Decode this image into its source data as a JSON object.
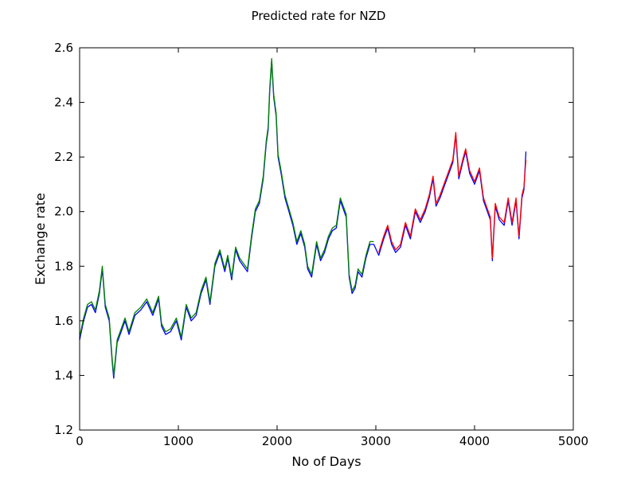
{
  "chart_data": {
    "type": "line",
    "title": "Predicted rate for NZD",
    "xlabel": "No of Days",
    "ylabel": "Exchange rate",
    "xlim": [
      0,
      5000
    ],
    "ylim": [
      1.2,
      2.6
    ],
    "xticks": [
      "0",
      "1000",
      "2000",
      "3000",
      "4000",
      "5000"
    ],
    "yticks": [
      "1.2",
      "1.4",
      "1.6",
      "1.8",
      "2.0",
      "2.2",
      "2.4",
      "2.6"
    ],
    "grid": false,
    "legend": "none",
    "series": [
      {
        "color": "#0000ff",
        "x": [
          0,
          40,
          80,
          120,
          160,
          200,
          230,
          260,
          300,
          330,
          345,
          380,
          420,
          460,
          500,
          560,
          620,
          680,
          740,
          800,
          830,
          870,
          920,
          980,
          1030,
          1080,
          1130,
          1180,
          1230,
          1280,
          1320,
          1370,
          1420,
          1470,
          1500,
          1540,
          1580,
          1620,
          1660,
          1700,
          1740,
          1780,
          1820,
          1860,
          1890,
          1910,
          1925,
          1945,
          1965,
          1990,
          2010,
          2040,
          2080,
          2120,
          2160,
          2200,
          2240,
          2280,
          2310,
          2350,
          2400,
          2440,
          2480,
          2520,
          2560,
          2600,
          2640,
          2670,
          2700,
          2730,
          2760,
          2790,
          2820,
          2860,
          2900,
          2940,
          2980,
          3030,
          3080,
          3120,
          3160,
          3200,
          3250,
          3300,
          3350,
          3400,
          3450,
          3500,
          3540,
          3580,
          3610,
          3650,
          3700,
          3740,
          3780,
          3810,
          3840,
          3880,
          3910,
          3950,
          4000,
          4050,
          4090,
          4130,
          4160,
          4180,
          4210,
          4250,
          4300,
          4340,
          4380,
          4420,
          4450,
          4480,
          4500,
          4520
        ],
        "y": [
          1.53,
          1.6,
          1.65,
          1.66,
          1.63,
          1.7,
          1.79,
          1.65,
          1.6,
          1.45,
          1.39,
          1.52,
          1.56,
          1.6,
          1.55,
          1.62,
          1.64,
          1.67,
          1.62,
          1.68,
          1.58,
          1.55,
          1.56,
          1.6,
          1.53,
          1.65,
          1.6,
          1.62,
          1.7,
          1.75,
          1.66,
          1.8,
          1.85,
          1.78,
          1.83,
          1.75,
          1.86,
          1.82,
          1.8,
          1.78,
          1.9,
          2.0,
          2.03,
          2.12,
          2.25,
          2.3,
          2.44,
          2.55,
          2.42,
          2.35,
          2.2,
          2.14,
          2.05,
          2.0,
          1.95,
          1.88,
          1.92,
          1.87,
          1.79,
          1.76,
          1.88,
          1.82,
          1.85,
          1.9,
          1.93,
          1.94,
          2.04,
          2.01,
          1.98,
          1.76,
          1.7,
          1.72,
          1.78,
          1.76,
          1.83,
          1.88,
          1.88,
          1.84,
          1.9,
          1.94,
          1.88,
          1.85,
          1.87,
          1.95,
          1.9,
          2.0,
          1.96,
          2.0,
          2.05,
          2.12,
          2.02,
          2.05,
          2.1,
          2.14,
          2.18,
          2.28,
          2.12,
          2.18,
          2.22,
          2.14,
          2.1,
          2.15,
          2.04,
          2.0,
          1.97,
          1.82,
          2.02,
          1.97,
          1.95,
          2.04,
          1.95,
          2.04,
          1.9,
          2.05,
          2.08,
          2.22
        ]
      },
      {
        "color": "#008000",
        "x": [
          0,
          40,
          80,
          120,
          160,
          200,
          230,
          260,
          300,
          330,
          345,
          380,
          420,
          460,
          500,
          560,
          620,
          680,
          740,
          800,
          830,
          870,
          920,
          980,
          1030,
          1080,
          1130,
          1180,
          1230,
          1280,
          1320,
          1370,
          1420,
          1470,
          1500,
          1540,
          1580,
          1620,
          1660,
          1700,
          1740,
          1780,
          1820,
          1860,
          1890,
          1910,
          1925,
          1945,
          1965,
          1990,
          2010,
          2040,
          2080,
          2120,
          2160,
          2200,
          2240,
          2280,
          2310,
          2350,
          2400,
          2440,
          2480,
          2520,
          2560,
          2600,
          2640,
          2670,
          2700,
          2730,
          2760,
          2790,
          2820,
          2860,
          2900,
          2940,
          2980
        ],
        "y": [
          1.54,
          1.61,
          1.66,
          1.67,
          1.64,
          1.71,
          1.8,
          1.66,
          1.61,
          1.46,
          1.4,
          1.53,
          1.57,
          1.61,
          1.56,
          1.63,
          1.65,
          1.68,
          1.63,
          1.69,
          1.59,
          1.56,
          1.57,
          1.61,
          1.54,
          1.66,
          1.61,
          1.63,
          1.71,
          1.76,
          1.67,
          1.81,
          1.86,
          1.79,
          1.84,
          1.76,
          1.87,
          1.83,
          1.81,
          1.79,
          1.91,
          2.01,
          2.04,
          2.13,
          2.26,
          2.31,
          2.45,
          2.56,
          2.43,
          2.36,
          2.21,
          2.15,
          2.06,
          2.01,
          1.96,
          1.89,
          1.93,
          1.88,
          1.8,
          1.77,
          1.89,
          1.83,
          1.86,
          1.91,
          1.94,
          1.95,
          2.05,
          2.02,
          1.99,
          1.77,
          1.71,
          1.73,
          1.79,
          1.77,
          1.84,
          1.89,
          1.89
        ]
      },
      {
        "color": "#ff0000",
        "x": [
          3030,
          3080,
          3120,
          3160,
          3200,
          3250,
          3300,
          3350,
          3400,
          3450,
          3500,
          3540,
          3580,
          3610,
          3650,
          3700,
          3740,
          3780,
          3810,
          3840,
          3880,
          3910,
          3950,
          4000,
          4050,
          4090,
          4130,
          4160,
          4180,
          4210,
          4250,
          4300,
          4340,
          4380,
          4420,
          4450,
          4480,
          4500,
          4520
        ],
        "y": [
          1.85,
          1.91,
          1.95,
          1.89,
          1.86,
          1.88,
          1.96,
          1.91,
          2.01,
          1.97,
          2.01,
          2.06,
          2.13,
          2.03,
          2.06,
          2.11,
          2.15,
          2.19,
          2.29,
          2.13,
          2.19,
          2.23,
          2.15,
          2.11,
          2.16,
          2.05,
          2.01,
          1.98,
          1.83,
          2.03,
          1.98,
          1.96,
          2.05,
          1.96,
          2.05,
          1.91,
          2.06,
          2.09,
          2.19
        ]
      }
    ]
  }
}
